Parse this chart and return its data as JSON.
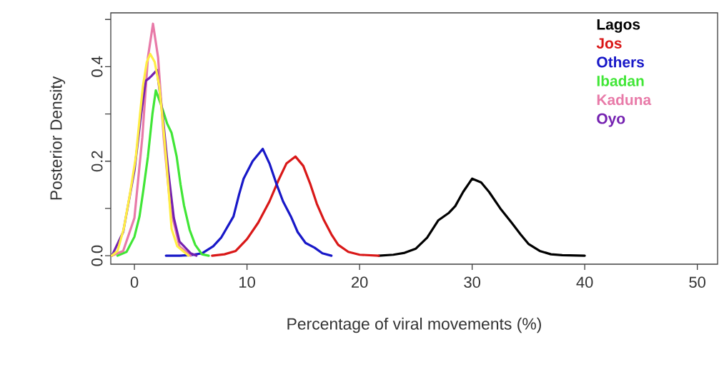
{
  "chart_data": {
    "type": "line",
    "xlabel": "Percentage of viral movements (%)",
    "ylabel": "Posterior Density",
    "xlim": [
      -2.1,
      51.8
    ],
    "ylim": [
      -0.018,
      0.514
    ],
    "xticks": [
      0,
      10,
      20,
      30,
      40,
      50
    ],
    "yticks": [
      {
        "value": 0,
        "label": "0.0"
      },
      {
        "value": 0.1,
        "label": null
      },
      {
        "value": 0.2,
        "label": "0.2"
      },
      {
        "value": 0.3,
        "label": null
      },
      {
        "value": 0.4,
        "label": "0.4"
      },
      {
        "value": 0.5,
        "label": null
      }
    ],
    "legend": "top right",
    "series": [
      {
        "name": "Lagos",
        "color": "#000000",
        "x": [
          21.7,
          23,
          24,
          25,
          26,
          27,
          27.9,
          28.5,
          29.2,
          30,
          30.8,
          31.5,
          32.5,
          33.5,
          34.3,
          35,
          36,
          37,
          38,
          40
        ],
        "values": [
          0,
          0.002,
          0.006,
          0.015,
          0.038,
          0.075,
          0.09,
          0.105,
          0.135,
          0.163,
          0.155,
          0.135,
          0.1,
          0.07,
          0.045,
          0.025,
          0.01,
          0.003,
          0.001,
          0
        ]
      },
      {
        "name": "Jos",
        "color": "#d91818",
        "x": [
          6.9,
          8,
          9,
          10,
          11,
          12,
          12.8,
          13.5,
          14.3,
          15,
          15.6,
          16.2,
          16.8,
          17.5,
          18.1,
          19,
          20,
          21.7
        ],
        "values": [
          0,
          0.003,
          0.01,
          0.035,
          0.07,
          0.115,
          0.16,
          0.195,
          0.21,
          0.19,
          0.153,
          0.11,
          0.077,
          0.045,
          0.023,
          0.008,
          0.002,
          0
        ]
      },
      {
        "name": "Others",
        "color": "#1818c8",
        "x": [
          2.8,
          4,
          5,
          6,
          7,
          7.7,
          8.8,
          9.3,
          9.7,
          10.5,
          11.4,
          12,
          12.6,
          13.2,
          13.9,
          14.5,
          15.2,
          16,
          16.7,
          17.5
        ],
        "values": [
          0,
          0,
          0.001,
          0.005,
          0.02,
          0.038,
          0.083,
          0.13,
          0.163,
          0.2,
          0.226,
          0.195,
          0.153,
          0.115,
          0.083,
          0.05,
          0.027,
          0.017,
          0.005,
          0
        ]
      },
      {
        "name": "Ibadan",
        "color": "#40e636",
        "x": [
          -1.5,
          -0.7,
          0,
          0.45,
          0.8,
          1.2,
          1.6,
          1.9,
          2.2,
          2.5,
          2.9,
          3.3,
          3.75,
          4.1,
          4.4,
          4.9,
          5.4,
          6,
          6.6
        ],
        "values": [
          0,
          0.008,
          0.04,
          0.083,
          0.14,
          0.21,
          0.3,
          0.35,
          0.33,
          0.31,
          0.28,
          0.26,
          0.21,
          0.15,
          0.107,
          0.055,
          0.023,
          0.003,
          0
        ]
      },
      {
        "name": "Kaduna",
        "color": "#e87aa8",
        "x": [
          -2,
          -1,
          0,
          0.7,
          1.2,
          1.65,
          2.1,
          2.6,
          3.2,
          4,
          5
        ],
        "values": [
          0,
          0.01,
          0.08,
          0.25,
          0.42,
          0.491,
          0.42,
          0.25,
          0.1,
          0.02,
          0
        ]
      },
      {
        "name": "Oyo",
        "color": "#7420b0",
        "x": [
          -2,
          -1,
          0,
          0.6,
          1,
          1.27,
          1.5,
          2,
          2.5,
          3,
          3.5,
          4,
          5,
          5.5
        ],
        "values": [
          0,
          0.05,
          0.18,
          0.3,
          0.37,
          0.375,
          0.38,
          0.393,
          0.3,
          0.18,
          0.08,
          0.03,
          0.005,
          0
        ]
      },
      {
        "color": "#ffee44",
        "x": [
          -2,
          -1.5,
          -0.95,
          -0.4,
          0.13,
          0.5,
          0.76,
          1.1,
          1.4,
          1.8,
          2.2,
          2.5,
          2.8,
          3.1,
          3.3,
          3.8,
          4.8
        ],
        "values": [
          0,
          0.01,
          0.057,
          0.13,
          0.21,
          0.3,
          0.36,
          0.41,
          0.427,
          0.41,
          0.36,
          0.29,
          0.21,
          0.12,
          0.057,
          0.02,
          0
        ]
      }
    ]
  }
}
